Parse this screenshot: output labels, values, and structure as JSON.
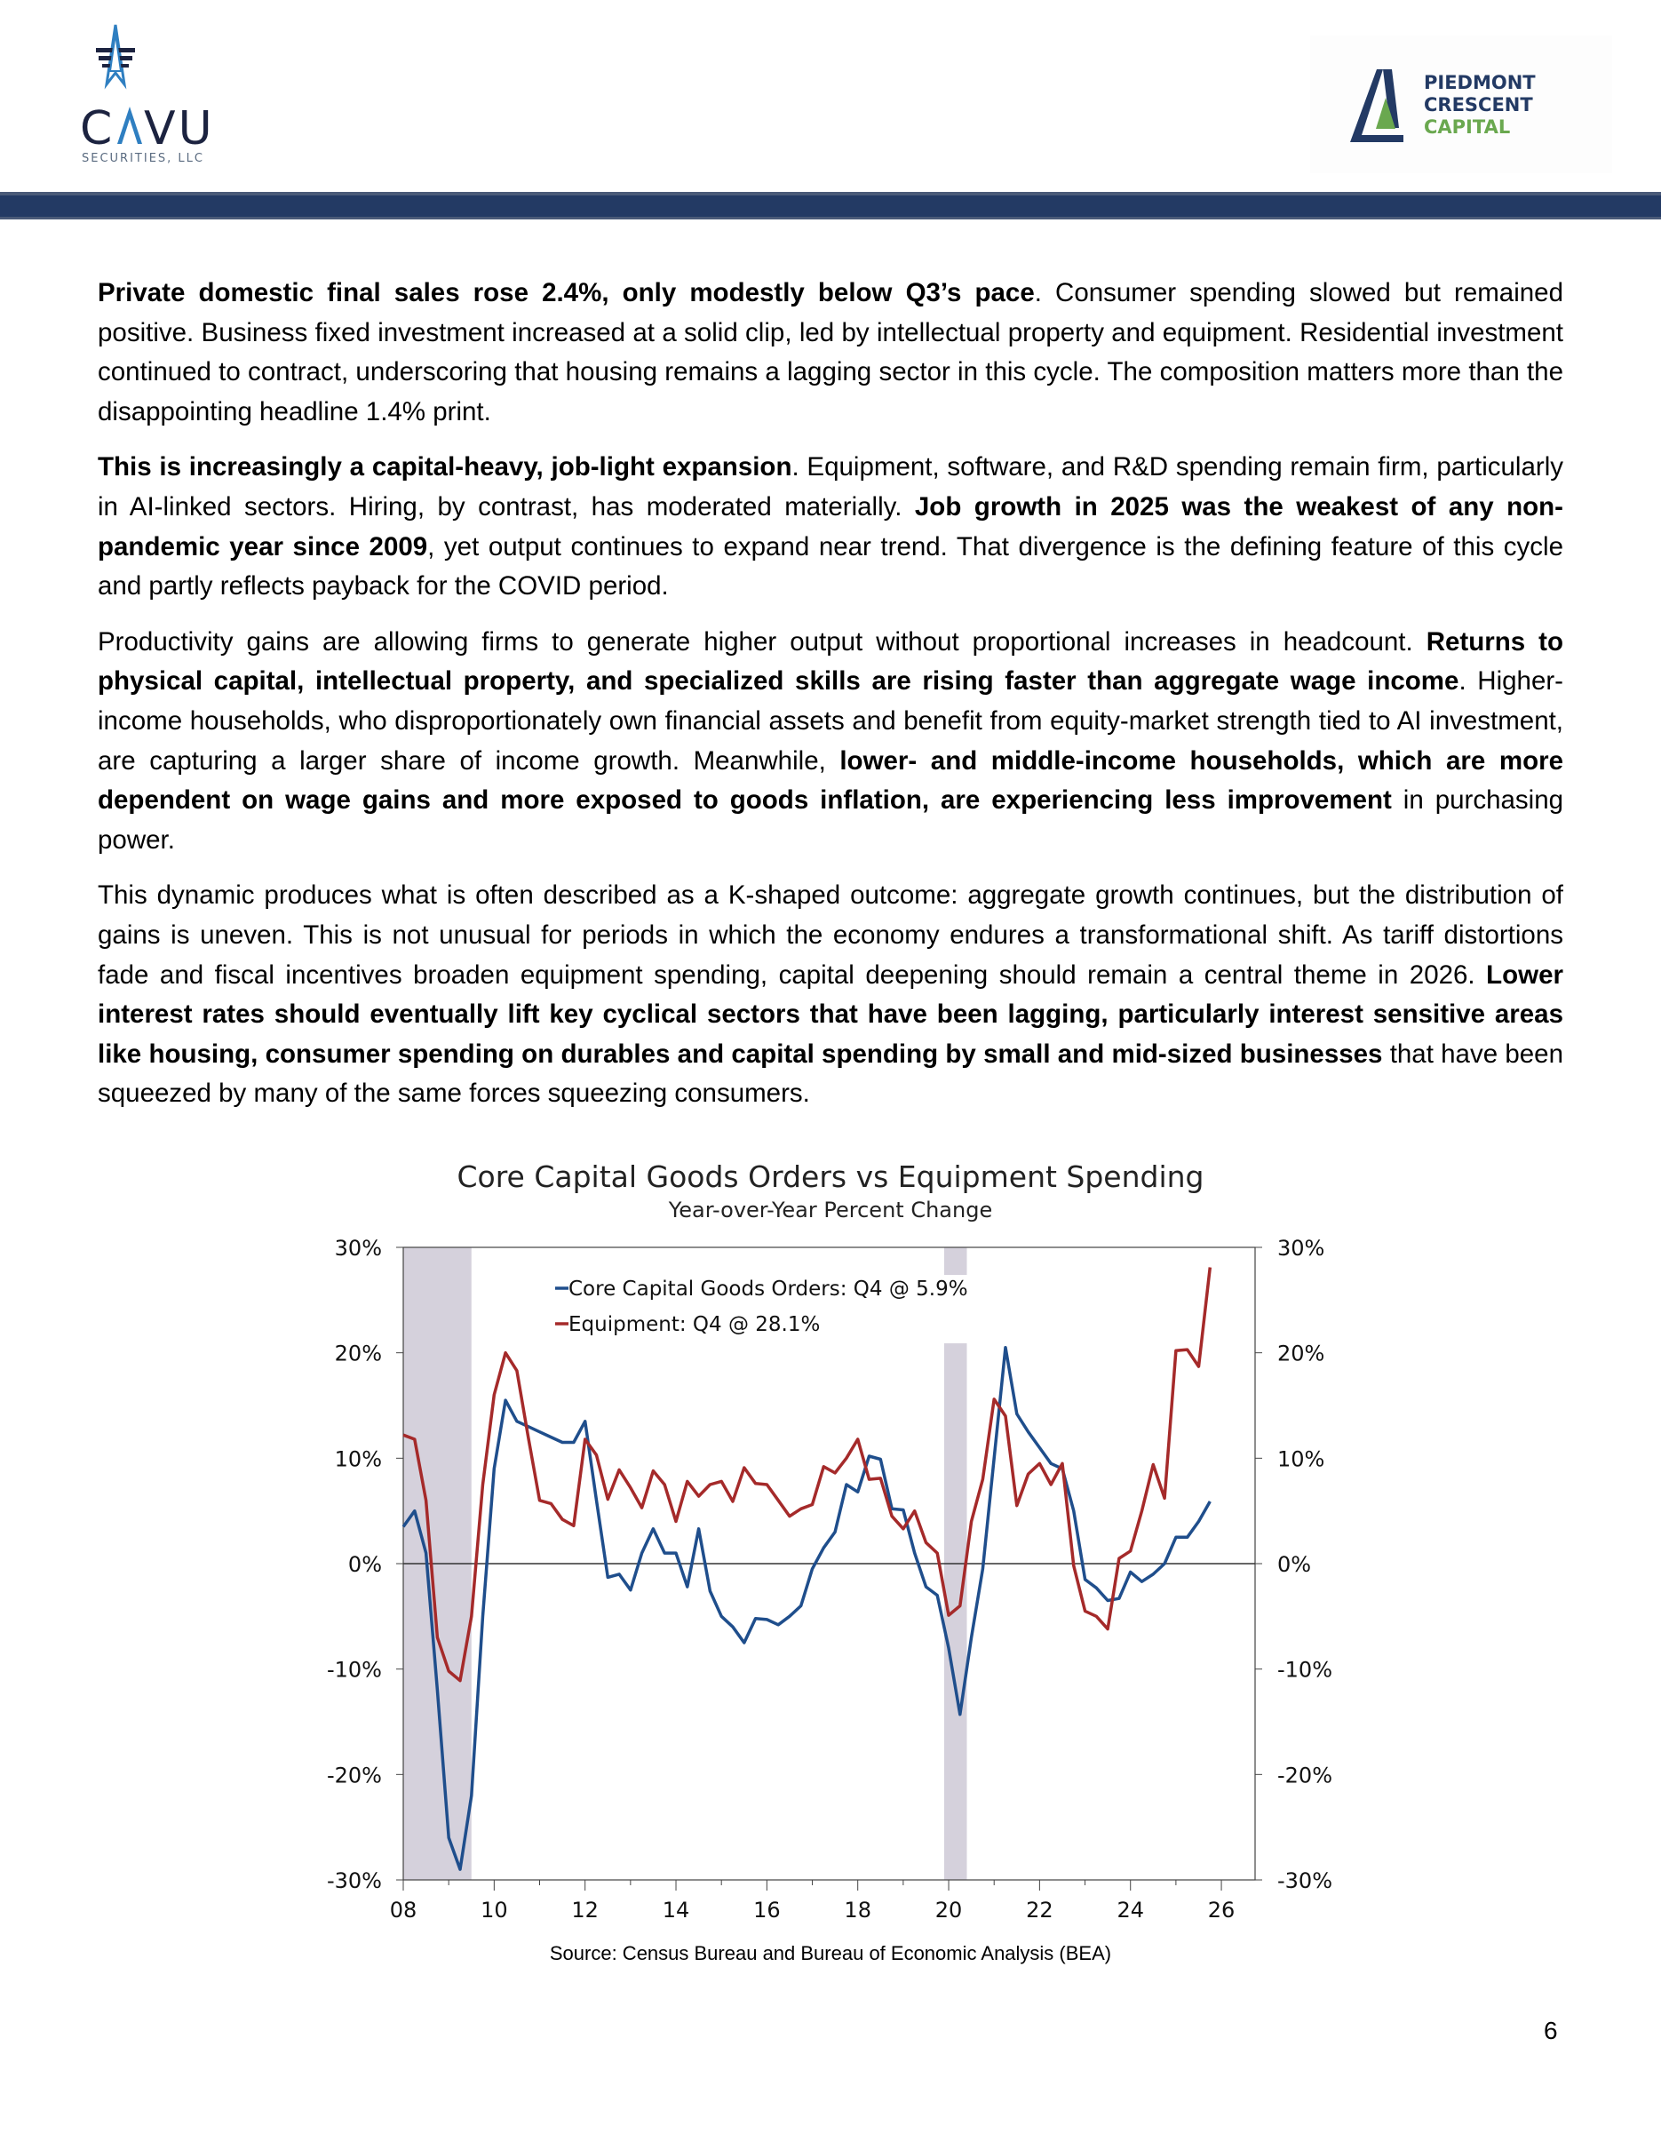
{
  "header": {
    "left_logo": {
      "name": "CAVU",
      "sub": "SECURITIES, LLC"
    },
    "right_logo": {
      "lines": [
        "PIEDMONT",
        "CRESCENT",
        "CAPITAL"
      ]
    },
    "colors": {
      "navy": "#233a64",
      "blue": "#2f7fc1",
      "green": "#6aa84f"
    }
  },
  "paragraphs": [
    [
      {
        "text": "Private domestic final sales rose 2.4%, only modestly below Q3’s pace",
        "bold": true
      },
      {
        "text": ". Consumer spending slowed but remained positive. Business fixed investment increased at a solid clip, led by intellectual property and equipment. Residential investment continued to contract, underscoring that housing remains a lagging sector in this cycle. The composition matters more than the disappointing headline 1.4% print.",
        "bold": false
      }
    ],
    [
      {
        "text": "This is increasingly a capital-heavy, job-light expansion",
        "bold": true
      },
      {
        "text": ". Equipment, software, and R&D spending remain firm, particularly in AI-linked sectors. Hiring, by contrast, has moderated materially. ",
        "bold": false
      },
      {
        "text": "Job growth in 2025 was the weakest of any non-pandemic year since 2009",
        "bold": true
      },
      {
        "text": ", yet output continues to expand near trend. That divergence is the defining feature of this cycle and partly reflects payback for the COVID period.",
        "bold": false
      }
    ],
    [
      {
        "text": "Productivity gains are allowing firms to generate higher output without proportional increases in headcount. ",
        "bold": false
      },
      {
        "text": "Returns to physical capital, intellectual property, and specialized skills are rising faster than aggregate wage income",
        "bold": true
      },
      {
        "text": ". Higher-income households, who disproportionately own financial assets and benefit from equity-market strength tied to AI investment, are capturing a larger share of income growth. Meanwhile, ",
        "bold": false
      },
      {
        "text": "lower- and middle-income households, which are more dependent on wage gains and more exposed to goods inflation, are experiencing less improvement",
        "bold": true
      },
      {
        "text": " in purchasing power.",
        "bold": false
      }
    ],
    [
      {
        "text": "This dynamic produces what is often described as a K-shaped outcome: aggregate growth continues, but the distribution of gains is uneven. This is not unusual for periods in which the economy endures a transformational shift. As tariff distortions fade and fiscal incentives broaden equipment spending, capital deepening should remain a central theme in 2026. ",
        "bold": false
      },
      {
        "text": "Lower interest rates should eventually lift key cyclical sectors that have been lagging, particularly interest sensitive areas like housing, consumer spending on durables and capital spending by small and mid-sized businesses",
        "bold": true
      },
      {
        "text": " that have been squeezed by many of the same forces squeezing consumers.",
        "bold": false
      }
    ]
  ],
  "chart_data": {
    "type": "line",
    "title": "Core Capital Goods Orders vs Equipment Spending",
    "subtitle": "Year-over-Year Percent Change",
    "xlabel": "",
    "ylabel": "",
    "x_start": 2008,
    "x_step": 0.25,
    "xlim": [
      2008,
      2026.75
    ],
    "ylim": [
      -30,
      30
    ],
    "x_ticks": [
      "08",
      "10",
      "12",
      "14",
      "16",
      "18",
      "20",
      "22",
      "24",
      "26"
    ],
    "y_ticks": [
      "30%",
      "20%",
      "10%",
      "0%",
      "-10%",
      "-20%",
      "-30%"
    ],
    "grid": false,
    "legend_position": "top-left",
    "recessions": [
      [
        2008.0,
        2009.5
      ],
      [
        2019.9,
        2020.4
      ]
    ],
    "series": [
      {
        "name": "Core Capital Goods Orders: Q4 @ 5.9%",
        "color": "#1f4e8c",
        "values": [
          3.5,
          5,
          1,
          -12,
          -26,
          -29,
          -22,
          -5,
          9,
          15.5,
          13.5,
          13,
          12.5,
          12,
          11.5,
          11.5,
          13.5,
          6,
          -1.3,
          -1,
          -2.5,
          1,
          3.3,
          1,
          1,
          -2.2,
          3.3,
          -2.6,
          -5,
          -6,
          -7.5,
          -5.2,
          -5.3,
          -5.8,
          -5,
          -4,
          -0.5,
          1.5,
          3,
          7.5,
          6.8,
          10.2,
          9.9,
          5.2,
          5.1,
          1,
          -2.2,
          -3,
          -8,
          -14.3,
          -7,
          -0.5,
          10,
          20.5,
          14.2,
          12.5,
          11,
          9.5,
          9,
          5,
          -1.5,
          -2.3,
          -3.5,
          -3.3,
          -0.8,
          -1.7,
          -1,
          0,
          2.5,
          2.5,
          4,
          5.9
        ]
      },
      {
        "name": "Equipment: Q4 @ 28.1%",
        "color": "#a52a2a",
        "values": [
          12.2,
          11.8,
          6,
          -7,
          -10.2,
          -11.1,
          -5,
          7.5,
          16,
          20,
          18.3,
          12,
          6,
          5.7,
          4.2,
          3.6,
          11.8,
          10.3,
          6.1,
          8.9,
          7.2,
          5.3,
          8.8,
          7.5,
          4,
          7.8,
          6.4,
          7.5,
          7.8,
          5.9,
          9.1,
          7.6,
          7.5,
          6,
          4.5,
          5.2,
          5.6,
          9.2,
          8.6,
          10,
          11.8,
          8,
          8.1,
          4.5,
          3.3,
          5,
          2,
          1,
          -4.9,
          -4,
          4,
          8,
          15.6,
          14,
          5.5,
          8.5,
          9.5,
          7.5,
          9.5,
          -0.2,
          -4.5,
          -5,
          -6.2,
          0.5,
          1.2,
          5,
          9.4,
          6.2,
          20.2,
          20.3,
          18.7,
          28.1
        ]
      }
    ]
  },
  "source": "Source: Census Bureau and Bureau of Economic Analysis (BEA)",
  "page_number": "6"
}
